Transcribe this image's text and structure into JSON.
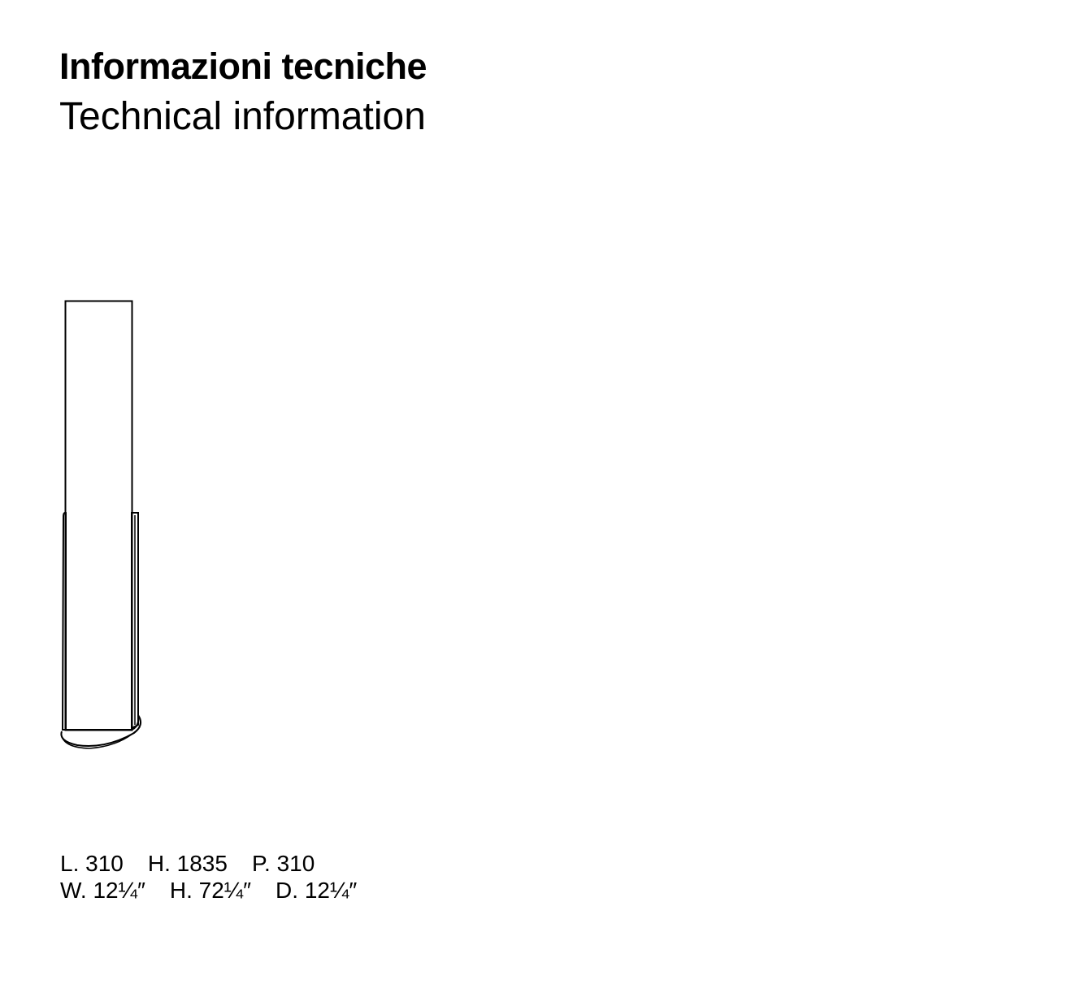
{
  "header": {
    "title": "Informazioni tecniche",
    "subtitle": "Technical information"
  },
  "dimensions": {
    "metric": [
      "L. 310",
      "H. 1835",
      "P. 310"
    ],
    "imperial": [
      "W. 12¼″",
      "H. 72¼″",
      "D. 12¼″"
    ]
  }
}
